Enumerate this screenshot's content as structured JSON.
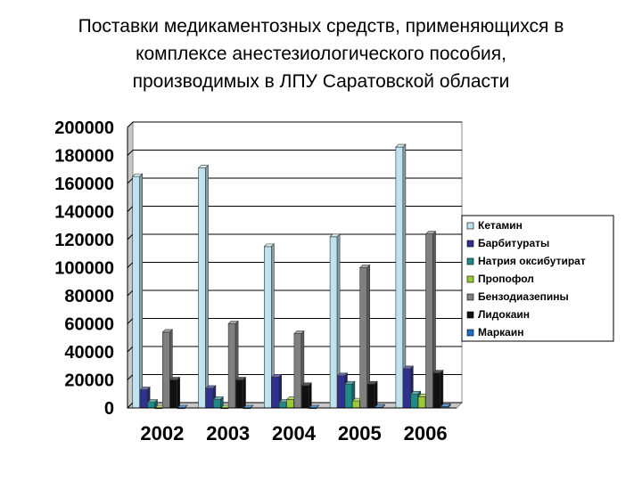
{
  "chart_data": {
    "type": "bar",
    "title": [
      "Поставки медикаментозных средств, применяющихся в",
      "комплексе анестезиологического пособия,",
      "производимых в ЛПУ Саратовской области"
    ],
    "categories": [
      "2002",
      "2003",
      "2004",
      "2005",
      "2006"
    ],
    "yticks": [
      "200000",
      "180000",
      "160000",
      "140000",
      "120000",
      "100000",
      "80000",
      "60000",
      "40000",
      "20000",
      "0"
    ],
    "ylim": [
      0,
      200000
    ],
    "grid": true,
    "legend_position": "right",
    "series": [
      {
        "name": "Кетамин",
        "color": "#bfe3ee",
        "values": [
          165000,
          171000,
          115000,
          122000,
          186000
        ]
      },
      {
        "name": "Барбитураты",
        "color": "#2e3192",
        "values": [
          13000,
          14000,
          22000,
          23000,
          28000
        ]
      },
      {
        "name": "Натрия оксибутират",
        "color": "#1f8a8a",
        "values": [
          4000,
          6000,
          4000,
          17000,
          10000
        ]
      },
      {
        "name": "Пропофол",
        "color": "#99cc33",
        "values": [
          0,
          0,
          6000,
          5000,
          8000
        ]
      },
      {
        "name": "Бензодиазепины",
        "color": "#808080",
        "values": [
          54000,
          60000,
          53000,
          100000,
          124000
        ]
      },
      {
        "name": "Лидокаин",
        "color": "#111111",
        "values": [
          20000,
          20000,
          16000,
          17000,
          25000
        ]
      },
      {
        "name": "Маркаин",
        "color": "#1e6fc8",
        "values": [
          0,
          0,
          0,
          500,
          1000
        ]
      }
    ]
  }
}
